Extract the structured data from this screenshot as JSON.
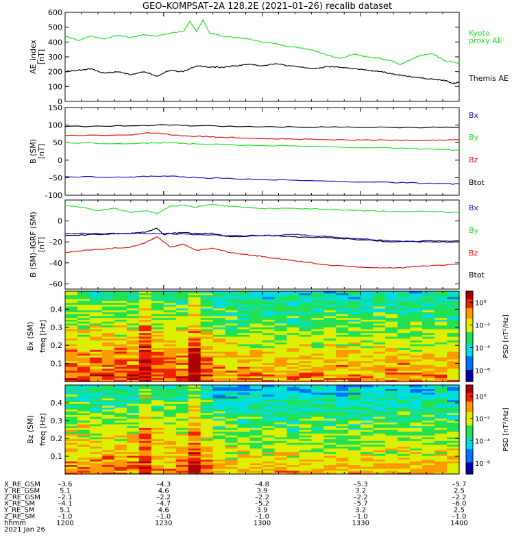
{
  "title": "GEO–KOMPSAT–2A 128.2E (2021–01–26) recalib dataset",
  "colors": {
    "black": "#000000",
    "green": "#22e022",
    "red": "#dd1111",
    "blue": "#1111cc"
  },
  "chart_data": [
    {
      "type": "line",
      "ylabel_top": "AE_index",
      "ylabel_bottom": "[nT]",
      "ylim": [
        0,
        600
      ],
      "yticks": [
        0,
        100,
        200,
        300,
        400,
        500,
        600
      ],
      "xlim": [
        0,
        120
      ],
      "series": [
        {
          "name": "Kyoto proxy AE",
          "legend_lines": [
            "Kyoto",
            "proxy AE"
          ],
          "color": "green",
          "x": [
            0,
            4,
            8,
            12,
            16,
            20,
            24,
            28,
            32,
            36,
            38,
            40,
            42,
            44,
            48,
            52,
            56,
            60,
            64,
            68,
            72,
            76,
            80,
            84,
            88,
            92,
            96,
            100,
            102,
            104,
            108,
            112,
            116,
            120
          ],
          "values": [
            440,
            410,
            440,
            420,
            445,
            430,
            450,
            440,
            460,
            470,
            540,
            470,
            550,
            460,
            440,
            430,
            420,
            400,
            390,
            370,
            360,
            340,
            310,
            290,
            320,
            300,
            290,
            270,
            245,
            270,
            310,
            320,
            270,
            260
          ]
        },
        {
          "name": "Themis AE",
          "legend_lines": [
            "Themis AE"
          ],
          "color": "black",
          "x": [
            0,
            4,
            8,
            12,
            16,
            20,
            24,
            28,
            32,
            36,
            40,
            44,
            48,
            52,
            56,
            60,
            64,
            68,
            72,
            76,
            80,
            84,
            88,
            92,
            96,
            100,
            104,
            108,
            112,
            116,
            118,
            120
          ],
          "values": [
            200,
            210,
            220,
            190,
            200,
            180,
            200,
            170,
            210,
            200,
            240,
            230,
            230,
            240,
            250,
            240,
            255,
            240,
            230,
            220,
            235,
            230,
            220,
            210,
            200,
            185,
            170,
            160,
            150,
            140,
            120,
            130
          ]
        }
      ]
    },
    {
      "type": "line",
      "ylabel_top": "B (SM)",
      "ylabel_bottom": "[nT]",
      "ylim": [
        -100,
        150
      ],
      "yticks": [
        -100,
        -50,
        0,
        50,
        100,
        150
      ],
      "xlim": [
        0,
        120
      ],
      "series": [
        {
          "name": "Btot",
          "color": "black",
          "x": [
            0,
            20,
            30,
            40,
            60,
            80,
            100,
            120
          ],
          "values": [
            96,
            98,
            101,
            98,
            95,
            94,
            93,
            93
          ]
        },
        {
          "name": "Bz",
          "color": "red",
          "x": [
            0,
            20,
            25,
            30,
            35,
            40,
            50,
            60,
            70,
            80,
            90,
            100,
            110,
            120
          ],
          "values": [
            70,
            72,
            78,
            75,
            70,
            68,
            65,
            62,
            60,
            58,
            57,
            57,
            57,
            58
          ]
        },
        {
          "name": "By",
          "color": "green",
          "x": [
            0,
            20,
            30,
            40,
            60,
            80,
            100,
            110,
            120
          ],
          "values": [
            50,
            47,
            50,
            46,
            42,
            38,
            34,
            32,
            28
          ]
        },
        {
          "name": "Bx",
          "color": "blue",
          "x": [
            0,
            20,
            30,
            40,
            60,
            80,
            100,
            110,
            120
          ],
          "values": [
            -47,
            -48,
            -45,
            -50,
            -55,
            -60,
            -64,
            -66,
            -68
          ]
        }
      ],
      "legend": [
        "Bx",
        "By",
        "Bz",
        "Btot"
      ],
      "legend_colors": [
        "blue",
        "green",
        "red",
        "black"
      ]
    },
    {
      "type": "line",
      "ylabel_top": "B (SM)–IGRF (SM)",
      "ylabel_bottom": "[nT]",
      "ylim": [
        -65,
        20
      ],
      "yticks": [
        -60,
        -40,
        -20,
        0
      ],
      "xlim": [
        0,
        120
      ],
      "series": [
        {
          "name": "By",
          "color": "green",
          "x": [
            0,
            5,
            10,
            15,
            20,
            25,
            28,
            32,
            36,
            40,
            45,
            50,
            60,
            70,
            80,
            90,
            100,
            110,
            120
          ],
          "values": [
            15,
            13,
            10,
            12,
            8,
            10,
            7,
            14,
            15,
            13,
            16,
            14,
            12,
            12,
            11,
            10,
            9,
            9,
            8
          ]
        },
        {
          "name": "Btot",
          "color": "black",
          "x": [
            0,
            10,
            20,
            25,
            28,
            30,
            35,
            40,
            45,
            50,
            60,
            70,
            80,
            90,
            100,
            110,
            120
          ],
          "values": [
            -14,
            -13,
            -12,
            -10,
            -7,
            -13,
            -11,
            -12,
            -12,
            -15,
            -14,
            -15,
            -16,
            -18,
            -20,
            -19,
            -19
          ]
        },
        {
          "name": "Bx",
          "color": "blue",
          "x": [
            0,
            10,
            20,
            30,
            40,
            50,
            60,
            70,
            80,
            90,
            100,
            110,
            120
          ],
          "values": [
            -12,
            -12,
            -12,
            -12,
            -13,
            -14,
            -14,
            -13,
            -15,
            -17,
            -19,
            -20,
            -20
          ]
        },
        {
          "name": "Bz",
          "color": "red",
          "x": [
            0,
            10,
            20,
            25,
            28,
            32,
            36,
            40,
            45,
            50,
            55,
            60,
            70,
            80,
            90,
            100,
            110,
            120
          ],
          "values": [
            -30,
            -27,
            -25,
            -20,
            -15,
            -25,
            -22,
            -28,
            -26,
            -30,
            -32,
            -34,
            -38,
            -42,
            -44,
            -45,
            -43,
            -41
          ]
        }
      ],
      "legend": [
        "Bx",
        "By",
        "Bz",
        "Btot"
      ],
      "legend_colors": [
        "blue",
        "green",
        "red",
        "black"
      ]
    },
    {
      "type": "heatmap",
      "ylabel_top": "Bx (SM)",
      "ylabel_bottom": "freq [Hz]",
      "ylim": [
        0,
        0.5
      ],
      "yticks": [
        0.1,
        0.2,
        0.3,
        0.4
      ],
      "colorbar_label": "PSD [nT²/Hz]",
      "colorbar_ticks": [
        "10⁰",
        "10⁻²",
        "10⁻⁴",
        "10⁻⁶"
      ],
      "colorbar_range_log10": [
        -7,
        1
      ],
      "time_columns": 32,
      "freq_bins": 48
    },
    {
      "type": "heatmap",
      "ylabel_top": "Bz (SM)",
      "ylabel_bottom": "freq [Hz]",
      "ylim": [
        0,
        0.5
      ],
      "yticks": [
        0.1,
        0.2,
        0.3,
        0.4
      ],
      "colorbar_label": "PSD [nT²/Hz]",
      "colorbar_ticks": [
        "10⁰",
        "10⁻²",
        "10⁻⁴",
        "10⁻⁶"
      ],
      "colorbar_range_log10": [
        -7,
        1
      ],
      "time_columns": 32,
      "freq_bins": 48
    }
  ],
  "xaxis": {
    "xlim": [
      0,
      120
    ],
    "tick_positions": [
      0,
      30,
      60,
      90,
      120
    ],
    "rows": [
      {
        "label": "X_RE_GSM",
        "values": [
          "–3.6",
          "–4.3",
          "–4.8",
          "–5.3",
          "–5.7"
        ]
      },
      {
        "label": "Y_RE_GSM",
        "values": [
          "5.1",
          "4.6",
          "3.9",
          "3.2",
          "2.5"
        ]
      },
      {
        "label": "Z_RE_GSM",
        "values": [
          "–2.1",
          "–2.2",
          "–2.2",
          "–2.2",
          "–2.2"
        ]
      },
      {
        "label": "X_RE_SM",
        "values": [
          "–4.1",
          "–4.7",
          "–5.2",
          "–5.7",
          "–6.0"
        ]
      },
      {
        "label": "Y_RE_SM",
        "values": [
          "5.1",
          "4.6",
          "3.9",
          "3.2",
          "2.5"
        ]
      },
      {
        "label": "Z_RE_SM",
        "values": [
          "–1.0",
          "–1.0",
          "–1.0",
          "–1.0",
          "–1.0"
        ]
      },
      {
        "label": "hhmm",
        "values": [
          "1200",
          "1230",
          "1300",
          "1330",
          "1400"
        ]
      }
    ],
    "date_label": "2021 Jan 26"
  }
}
